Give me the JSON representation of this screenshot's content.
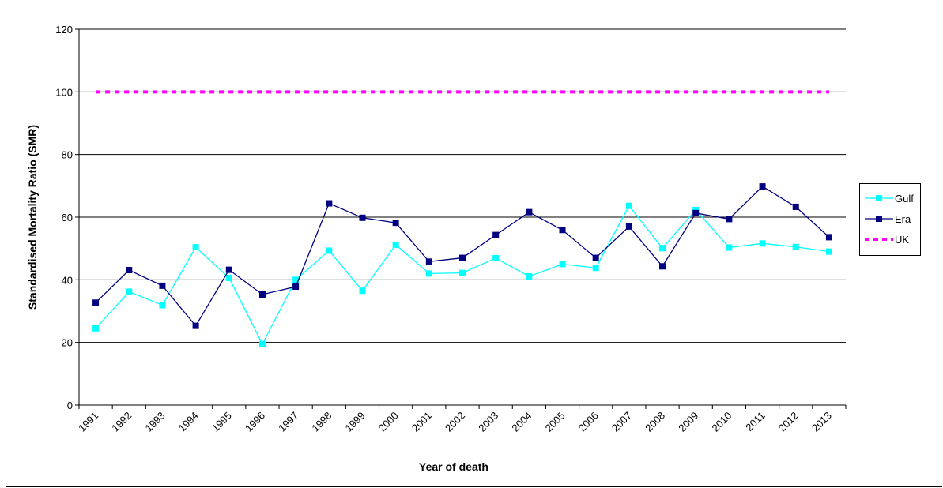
{
  "chart_data": {
    "type": "line",
    "title": "",
    "xlabel": "Year of death",
    "ylabel": "Standardised Mortality Ratio (SMR)",
    "ylim": [
      0,
      120
    ],
    "yticks": [
      0,
      20,
      40,
      60,
      80,
      100,
      120
    ],
    "grid": "horizontal",
    "legend_position": "right",
    "categories": [
      "1991",
      "1992",
      "1993",
      "1994",
      "1995",
      "1996",
      "1997",
      "1998",
      "1999",
      "2000",
      "2001",
      "2002",
      "2003",
      "2004",
      "2005",
      "2006",
      "2007",
      "2008",
      "2009",
      "2010",
      "2011",
      "2012",
      "2013"
    ],
    "series": [
      {
        "name": "Gulf",
        "color": "#00ffff",
        "style": "solid",
        "marker": "square",
        "values": [
          24.5,
          36.2,
          31.9,
          50.4,
          40.6,
          19.5,
          40.0,
          49.3,
          36.5,
          51.2,
          42.0,
          42.2,
          46.9,
          41.1,
          45.0,
          43.8,
          63.6,
          50.1,
          62.3,
          50.3,
          51.6,
          50.5,
          49.0
        ]
      },
      {
        "name": "Era",
        "color": "#000080",
        "style": "solid",
        "marker": "square",
        "values": [
          32.7,
          43.1,
          38.1,
          25.3,
          43.2,
          35.3,
          37.8,
          64.4,
          59.8,
          58.2,
          45.8,
          47.0,
          54.3,
          61.6,
          55.9,
          47.0,
          57.0,
          44.3,
          61.3,
          59.4,
          69.8,
          63.3,
          53.6
        ]
      },
      {
        "name": "UK",
        "color": "#ff00ff",
        "style": "dashed",
        "marker": "none",
        "values": [
          100,
          100,
          100,
          100,
          100,
          100,
          100,
          100,
          100,
          100,
          100,
          100,
          100,
          100,
          100,
          100,
          100,
          100,
          100,
          100,
          100,
          100,
          100
        ]
      }
    ]
  }
}
